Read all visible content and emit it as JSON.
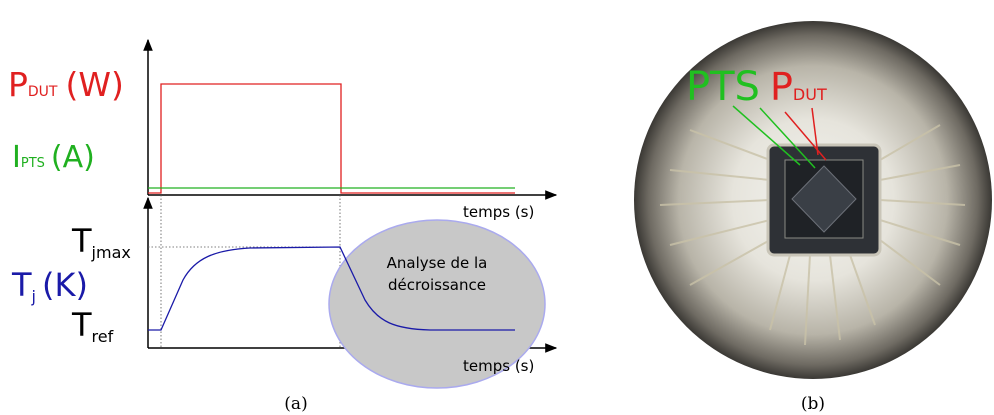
{
  "panel_a": {
    "power_label": {
      "symbol": "P",
      "subscript": "DUT",
      "unit": "(W)"
    },
    "current_label": {
      "symbol": "I",
      "subscript": "PTS",
      "unit": "(A)"
    },
    "temperature_label": {
      "symbol": "T",
      "subscript": "j",
      "unit": "(K)"
    },
    "tjmax_label": {
      "symbol": "T",
      "subscript": "jmax"
    },
    "tref_label": {
      "symbol": "T",
      "subscript": "ref"
    },
    "x_axis_label_top": "temps (s)",
    "x_axis_label_bottom": "temps (s)",
    "annotation": [
      "Analyse de la",
      "décroissance"
    ],
    "caption": "(a)"
  },
  "panel_b": {
    "pts_label": "PTS",
    "pdut_label": {
      "symbol": "P",
      "subscript": "DUT"
    },
    "caption": "(b)"
  }
}
